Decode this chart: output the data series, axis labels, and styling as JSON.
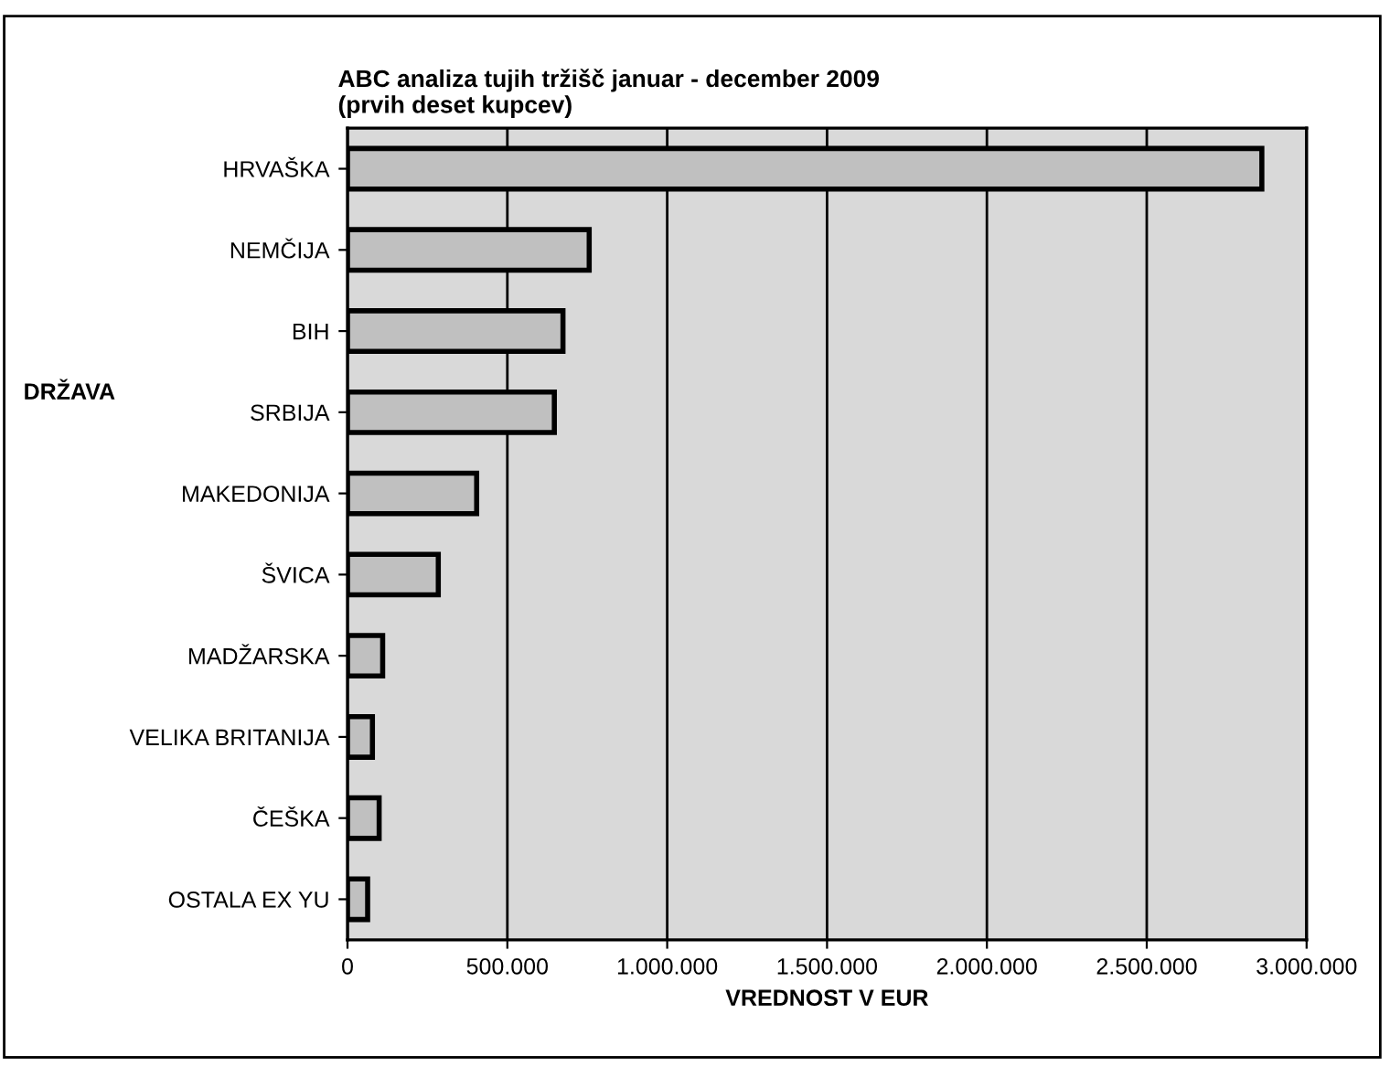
{
  "chart_data": {
    "type": "bar",
    "orientation": "horizontal",
    "title": "ABC analiza tujih tržišč januar - december 2009\n(prvih deset kupcev)",
    "xlabel": "VREDNOST V EUR",
    "ylabel": "DRŽAVA",
    "categories": [
      "HRVAŠKA",
      "NEMČIJA",
      "BIH",
      "SRBIJA",
      "MAKEDONIJA",
      "ŠVICA",
      "MADŽARSKA",
      "VELIKA BRITANIJA",
      "ČEŠKA",
      "OSTALA EX YU"
    ],
    "values": [
      2860000,
      756000,
      674000,
      647000,
      404000,
      284000,
      110000,
      78000,
      99000,
      63000
    ],
    "color": "#c0c0c0",
    "xlim": [
      0,
      3000000
    ],
    "xticks": [
      {
        "value": 0,
        "label": "0"
      },
      {
        "value": 500000,
        "label": "500.000"
      },
      {
        "value": 1000000,
        "label": "1.000.000"
      },
      {
        "value": 1500000,
        "label": "1.500.000"
      },
      {
        "value": 2000000,
        "label": "2.000.000"
      },
      {
        "value": 2500000,
        "label": "2.500.000"
      },
      {
        "value": 3000000,
        "label": "3.000.000"
      }
    ],
    "grid": "x"
  }
}
